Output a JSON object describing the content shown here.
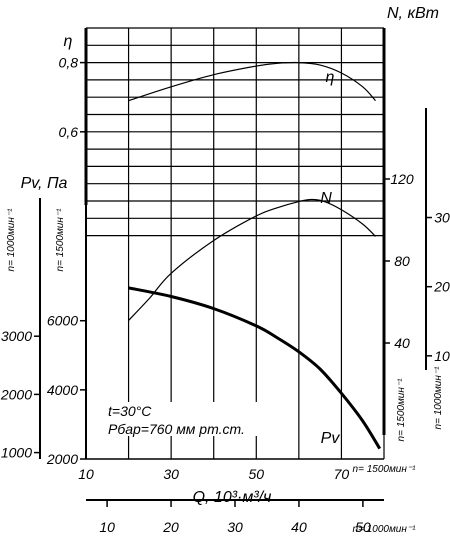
{
  "chart_data": {
    "type": "line",
    "x_axis": {
      "label": "Q, 10³·м³/ч",
      "range": [
        10,
        80
      ],
      "ticks": [
        "10",
        "30",
        "50",
        "70"
      ],
      "speed_note": "n= 1500мин⁻¹"
    },
    "x_axis_1000": {
      "range": [
        6.7,
        53.3
      ],
      "ticks": [
        "10",
        "20",
        "30",
        "40",
        "50"
      ],
      "speed_note": "n= 1000мин⁻¹"
    },
    "eta_axis": {
      "label": "η",
      "range": [
        0.4,
        0.9
      ],
      "ticks": [
        "0,6",
        "0,8"
      ]
    },
    "pv_axis_1500": {
      "label": "Pv, Па",
      "range": [
        2000,
        9000
      ],
      "ticks": [
        "2000",
        "4000",
        "6000"
      ],
      "speed_note": "n= 1500мин⁻¹"
    },
    "pv_axis_1000": {
      "range": [
        890,
        4000
      ],
      "ticks": [
        "1000",
        "2000",
        "3000"
      ],
      "speed_note": "n= 1000мин⁻¹"
    },
    "n_axis_1500": {
      "label": "N, кВт",
      "range": [
        0,
        140
      ],
      "ticks": [
        "40",
        "80",
        "120"
      ],
      "speed_note": "n= 1500мин⁻¹"
    },
    "n_axis_1000": {
      "range": [
        0,
        41.5
      ],
      "ticks": [
        "10",
        "20",
        "30"
      ],
      "speed_note": "n= 1000мин⁻¹"
    },
    "annotations": [
      "t=30°C",
      "Pбар=760 мм рт.ст."
    ],
    "series": [
      {
        "name": "η",
        "axis": "eta",
        "x": [
          20,
          30,
          40,
          50,
          55,
          60,
          65,
          70,
          75,
          78
        ],
        "y": [
          0.69,
          0.73,
          0.765,
          0.79,
          0.798,
          0.8,
          0.793,
          0.77,
          0.73,
          0.69
        ]
      },
      {
        "name": "N",
        "axis": "n_1500",
        "x": [
          20,
          25,
          30,
          40,
          50,
          55,
          60,
          63,
          66,
          70,
          75,
          78
        ],
        "y": [
          51,
          62,
          74,
          90,
          102,
          106,
          109,
          110,
          109,
          105,
          98,
          92
        ]
      },
      {
        "name": "Pv",
        "axis": "pv_1500",
        "x": [
          20,
          30,
          40,
          50,
          55,
          60,
          65,
          70,
          75,
          79
        ],
        "y": [
          6950,
          6700,
          6350,
          5850,
          5500,
          5100,
          4600,
          3900,
          3100,
          2300
        ]
      }
    ]
  }
}
